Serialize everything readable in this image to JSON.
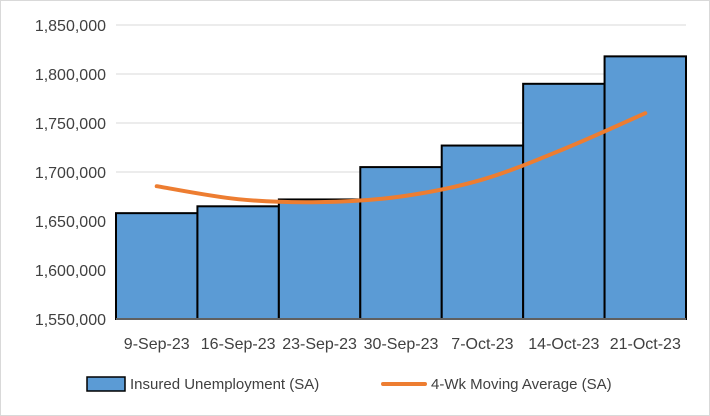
{
  "chart_data": {
    "type": "bar+line",
    "title": "",
    "xlabel": "",
    "ylabel": "",
    "categories": [
      "9-Sep-23",
      "16-Sep-23",
      "23-Sep-23",
      "30-Sep-23",
      "7-Oct-23",
      "14-Oct-23",
      "21-Oct-23"
    ],
    "series": [
      {
        "name": "Insured Unemployment (SA)",
        "kind": "bar",
        "color": "#5b9bd5",
        "values": [
          1658000,
          1665000,
          1672000,
          1705000,
          1727000,
          1790000,
          1818000
        ]
      },
      {
        "name": "4-Wk Moving Average (SA)",
        "kind": "line",
        "color": "#ed7d31",
        "values": [
          1685500,
          1672250,
          1669250,
          1675000,
          1692250,
          1723500,
          1760000
        ]
      }
    ],
    "ylim": [
      1550000,
      1850000
    ],
    "yticks": [
      1550000,
      1600000,
      1650000,
      1700000,
      1750000,
      1800000,
      1850000
    ],
    "ytick_labels": [
      "1,550,000",
      "1,600,000",
      "1,650,000",
      "1,700,000",
      "1,750,000",
      "1,800,000",
      "1,850,000"
    ],
    "grid": true,
    "legend": "bottom"
  }
}
